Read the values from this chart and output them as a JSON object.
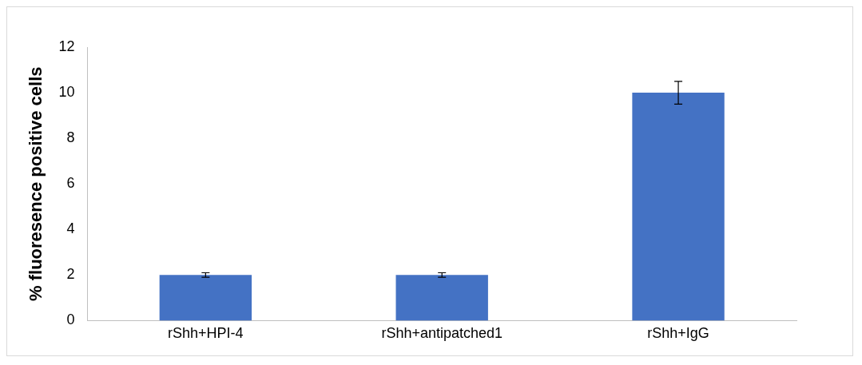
{
  "chart_data": {
    "type": "bar",
    "ylabel": "% fluoresence positive cells",
    "categories": [
      "rShh+HPI-4",
      "rShh+antipatched1",
      "rShh+IgG"
    ],
    "values": [
      2,
      2,
      10
    ],
    "errors": [
      0.1,
      0.1,
      0.5
    ],
    "color": "#4472c4",
    "ylim": [
      0,
      12
    ],
    "yticks": [
      0,
      2,
      4,
      6,
      8,
      10,
      12
    ],
    "grid": false,
    "legend": false
  }
}
